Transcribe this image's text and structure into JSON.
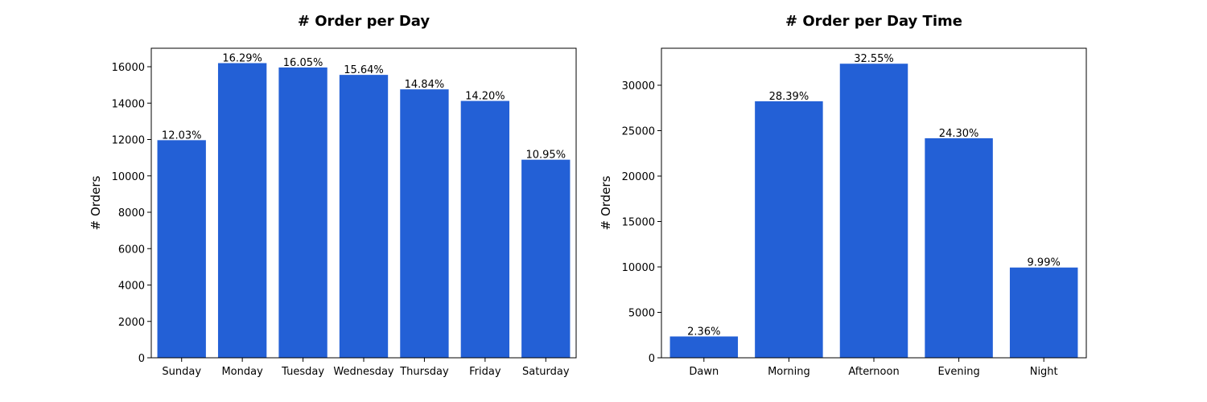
{
  "chart_data": [
    {
      "type": "bar",
      "title": "# Order per Day",
      "ylabel": "# Orders",
      "categories": [
        "Sunday",
        "Monday",
        "Tuesday",
        "Wednesday",
        "Thursday",
        "Friday",
        "Saturday"
      ],
      "values": [
        11963,
        16199,
        15960,
        15552,
        14757,
        14121,
        10889
      ],
      "annotations": [
        "12.03%",
        "16.29%",
        "16.05%",
        "15.64%",
        "14.84%",
        "14.20%",
        "10.95%"
      ],
      "color": "#2360d6",
      "ylim": [
        0,
        17017
      ],
      "yticks": [
        0,
        2000,
        4000,
        6000,
        8000,
        10000,
        12000,
        14000,
        16000
      ]
    },
    {
      "type": "bar",
      "title": "# Order per Day Time",
      "ylabel": "# Orders",
      "categories": [
        "Dawn",
        "Morning",
        "Afternoon",
        "Evening",
        "Night"
      ],
      "values": [
        2347,
        28231,
        32368,
        24164,
        9934
      ],
      "annotations": [
        "2.36%",
        "28.39%",
        "32.55%",
        "24.30%",
        "9.99%"
      ],
      "color": "#2360d6",
      "ylim": [
        0,
        34071
      ],
      "yticks": [
        0,
        5000,
        10000,
        15000,
        20000,
        25000,
        30000
      ]
    }
  ]
}
